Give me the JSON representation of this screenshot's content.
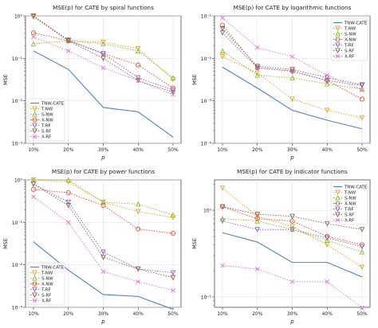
{
  "figure": {
    "p_label": "p",
    "mse_label": "MSE"
  },
  "legend_labels": [
    "TNW-CATE",
    "T-NW",
    "S-NW",
    "X-NW",
    "T-RF",
    "S-RF",
    "X-RF"
  ],
  "series_colors": {
    "TNW-CATE": "#4f81bd",
    "T-NW": "#e8a23c",
    "S-NW": "#8dbe3a",
    "X-NW": "#d85a3a",
    "T-RF": "#8e6bb8",
    "S-RF": "#8a6a5a",
    "X-RF": "#e07ad0"
  },
  "chart_data": [
    {
      "type": "line",
      "title": "MSE(p) for CATE by spiral functions",
      "xlabel": "p",
      "ylabel": "MSE",
      "x": [
        "10%",
        "20%",
        "30%",
        "40%",
        "50%"
      ],
      "yscale": "log",
      "ylim_exp": [
        -3,
        0
      ],
      "y_ticks": [
        "10⁻³",
        "10⁻²",
        "10⁻¹",
        "10⁰"
      ],
      "legend": "lower-left",
      "grid": true,
      "series": [
        {
          "name": "TNW-CATE",
          "values": [
            0.15,
            0.055,
            0.007,
            0.0055,
            0.0014
          ]
        },
        {
          "name": "T-NW",
          "values": [
            0.95,
            0.26,
            0.24,
            0.17,
            0.032
          ]
        },
        {
          "name": "S-NW",
          "values": [
            0.22,
            0.26,
            0.22,
            0.15,
            0.035
          ]
        },
        {
          "name": "X-NW",
          "values": [
            0.4,
            0.26,
            0.13,
            0.07,
            0.02
          ]
        },
        {
          "name": "T-RF",
          "values": [
            1.0,
            0.27,
            0.13,
            0.035,
            0.018
          ]
        },
        {
          "name": "S-RF",
          "values": [
            0.98,
            0.26,
            0.1,
            0.03,
            0.016
          ]
        },
        {
          "name": "X-RF",
          "values": [
            0.32,
            0.15,
            0.06,
            0.03,
            0.014
          ]
        }
      ]
    },
    {
      "type": "line",
      "title": "MSE(p) for CATE by logarithmic functions",
      "xlabel": "p",
      "ylabel": "MSE",
      "x": [
        "10%",
        "20%",
        "30%",
        "40%",
        "50%"
      ],
      "yscale": "log",
      "ylim_exp": [
        -4,
        -1
      ],
      "y_ticks": [
        "10⁻⁴",
        "10⁻³",
        "10⁻²",
        "10⁻¹"
      ],
      "legend": "upper-right",
      "grid": true,
      "series": [
        {
          "name": "TNW-CATE",
          "values": [
            0.0062,
            0.002,
            0.0006,
            0.00035,
            0.00022
          ]
        },
        {
          "name": "T-NW",
          "values": [
            0.011,
            0.0045,
            0.0011,
            0.0006,
            0.0004
          ]
        },
        {
          "name": "S-NW",
          "values": [
            0.015,
            0.004,
            0.0035,
            0.0025,
            0.0019
          ]
        },
        {
          "name": "X-NW",
          "values": [
            0.06,
            0.006,
            0.005,
            0.003,
            0.0011
          ]
        },
        {
          "name": "T-RF",
          "values": [
            0.04,
            0.006,
            0.005,
            0.003,
            0.0023
          ]
        },
        {
          "name": "S-RF",
          "values": [
            0.05,
            0.0065,
            0.0055,
            0.0035,
            0.0024
          ]
        },
        {
          "name": "X-RF",
          "values": [
            0.09,
            0.018,
            0.011,
            0.004,
            0.0018
          ]
        }
      ]
    },
    {
      "type": "line",
      "title": "MSE(p) for CATE by power functions",
      "xlabel": "p",
      "ylabel": "MSE",
      "x": [
        "10%",
        "20%",
        "30%",
        "40%",
        "50%"
      ],
      "yscale": "log",
      "ylim_exp": [
        -3,
        0
      ],
      "y_ticks": [
        "10⁻³",
        "10⁻²",
        "10⁻¹",
        "10⁰"
      ],
      "legend": "lower-left",
      "grid": true,
      "series": [
        {
          "name": "TNW-CATE",
          "values": [
            0.035,
            0.0075,
            0.002,
            0.0018,
            0.0009
          ]
        },
        {
          "name": "T-NW",
          "values": [
            1.0,
            0.9,
            0.3,
            0.18,
            0.13
          ]
        },
        {
          "name": "S-NW",
          "values": [
            1.0,
            1.0,
            0.3,
            0.27,
            0.15
          ]
        },
        {
          "name": "X-NW",
          "values": [
            0.6,
            0.5,
            0.25,
            0.07,
            0.055
          ]
        },
        {
          "name": "T-RF",
          "values": [
            0.8,
            0.3,
            0.02,
            0.008,
            0.0065
          ]
        },
        {
          "name": "S-RF",
          "values": [
            0.8,
            0.25,
            0.015,
            0.008,
            0.005
          ]
        },
        {
          "name": "X-RF",
          "values": [
            0.4,
            0.1,
            0.007,
            0.004,
            0.0025
          ]
        }
      ]
    },
    {
      "type": "line",
      "title": "MSE(p) for CATE by indicator functions",
      "xlabel": "p",
      "ylabel": "MSE",
      "x": [
        "10%",
        "20%",
        "30%",
        "40%",
        "50%"
      ],
      "yscale": "log",
      "ylim_exp": [
        -1.12,
        0.35
      ],
      "y_ticks": [
        "10⁻¹",
        "10⁰"
      ],
      "legend": "upper-right",
      "grid": true,
      "series": [
        {
          "name": "TNW-CATE",
          "values": [
            0.55,
            0.43,
            0.25,
            0.25,
            0.17
          ]
        },
        {
          "name": "T-NW",
          "values": [
            1.8,
            0.85,
            0.65,
            0.4,
            0.22
          ]
        },
        {
          "name": "S-NW",
          "values": [
            0.8,
            0.75,
            0.6,
            0.45,
            0.33
          ]
        },
        {
          "name": "X-NW",
          "values": [
            1.1,
            0.8,
            0.75,
            0.5,
            0.4
          ]
        },
        {
          "name": "T-RF",
          "values": [
            0.75,
            0.6,
            0.6,
            0.48,
            0.38
          ]
        },
        {
          "name": "S-RF",
          "values": [
            1.1,
            0.9,
            0.85,
            0.7,
            0.6
          ]
        },
        {
          "name": "X-RF",
          "values": [
            0.23,
            0.21,
            0.15,
            0.15,
            0.075
          ]
        }
      ]
    }
  ]
}
